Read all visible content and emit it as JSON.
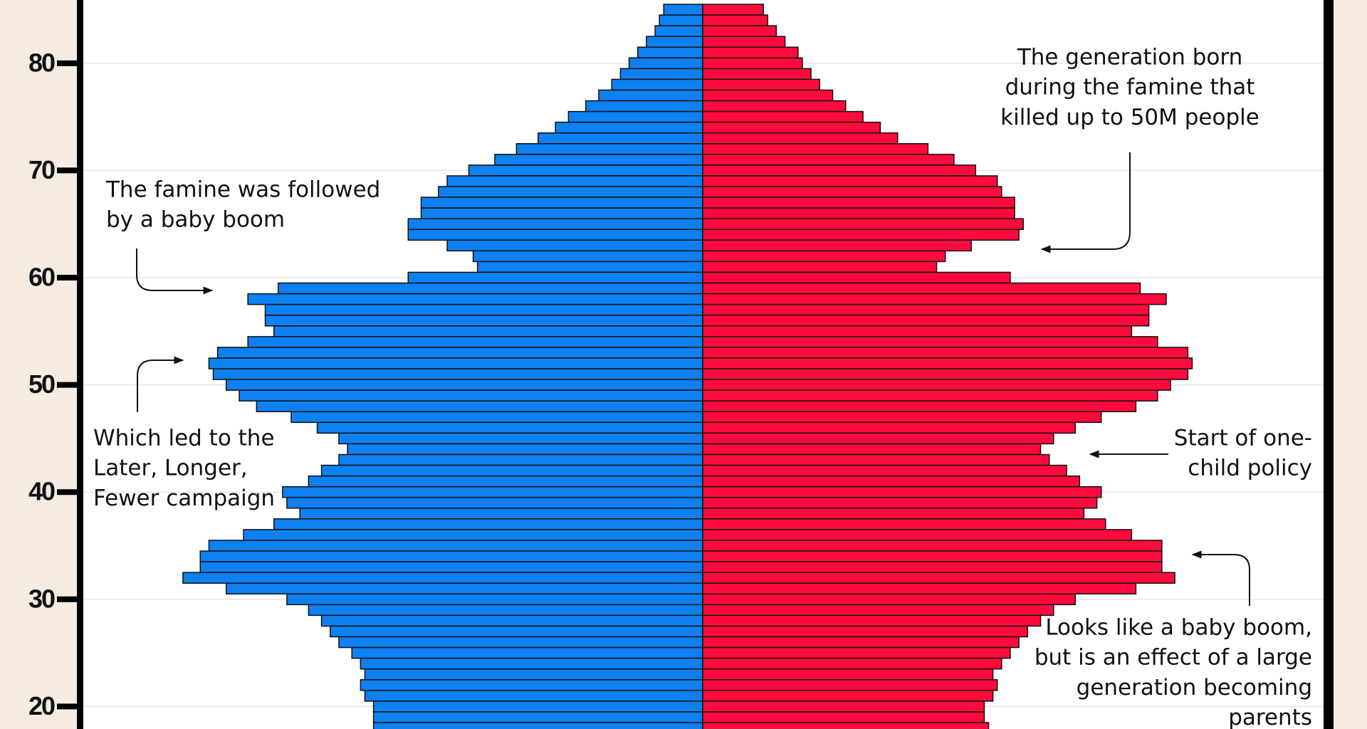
{
  "chart_data": {
    "type": "pyramid",
    "y": [
      85,
      84,
      83,
      82,
      81,
      80,
      79,
      78,
      77,
      76,
      75,
      74,
      73,
      72,
      71,
      70,
      69,
      68,
      67,
      66,
      65,
      64,
      63,
      62,
      61,
      60,
      59,
      58,
      57,
      56,
      55,
      54,
      53,
      52,
      51,
      50,
      49,
      48,
      47,
      46,
      45,
      44,
      43,
      42,
      41,
      40,
      39,
      38,
      37,
      36,
      35,
      34,
      33,
      32,
      31,
      30,
      29,
      28,
      27,
      26,
      25,
      24,
      23,
      22,
      21,
      20,
      19,
      18
    ],
    "series": [
      {
        "side": "left",
        "color": "#0d80f2",
        "values": [
          0.9,
          1.0,
          1.1,
          1.3,
          1.5,
          1.7,
          1.9,
          2.1,
          2.4,
          2.7,
          3.1,
          3.4,
          3.8,
          4.3,
          4.8,
          5.4,
          5.9,
          6.1,
          6.5,
          6.5,
          6.8,
          6.8,
          5.9,
          5.3,
          5.2,
          6.8,
          9.8,
          10.5,
          10.1,
          10.1,
          9.9,
          10.5,
          11.2,
          11.4,
          11.3,
          11.0,
          10.7,
          10.3,
          9.5,
          8.9,
          8.4,
          8.2,
          8.4,
          8.8,
          9.1,
          9.7,
          9.6,
          9.3,
          9.9,
          10.6,
          11.4,
          11.6,
          11.6,
          12.0,
          11.0,
          9.6,
          9.1,
          8.8,
          8.6,
          8.4,
          8.1,
          7.9,
          7.8,
          7.9,
          7.8,
          7.6,
          7.6,
          7.6
        ]
      },
      {
        "side": "right",
        "color": "#ff0a3c",
        "values": [
          1.4,
          1.5,
          1.7,
          1.9,
          2.2,
          2.3,
          2.5,
          2.7,
          3.0,
          3.3,
          3.7,
          4.1,
          4.5,
          5.2,
          5.8,
          6.3,
          6.8,
          6.9,
          7.2,
          7.2,
          7.4,
          7.3,
          6.2,
          5.6,
          5.4,
          7.1,
          10.1,
          10.7,
          10.3,
          10.3,
          9.9,
          10.5,
          11.2,
          11.3,
          11.2,
          10.8,
          10.5,
          10.0,
          9.2,
          8.6,
          8.1,
          7.8,
          8.0,
          8.4,
          8.7,
          9.2,
          9.1,
          8.8,
          9.3,
          9.9,
          10.6,
          10.6,
          10.6,
          10.9,
          10.0,
          8.6,
          8.1,
          7.8,
          7.5,
          7.3,
          7.1,
          6.9,
          6.7,
          6.8,
          6.7,
          6.5,
          6.5,
          6.6
        ]
      }
    ],
    "xlim": [
      0,
      14.3
    ],
    "ylim": [
      17.9,
      85.9
    ],
    "yticks": [
      20,
      30,
      40,
      50,
      60,
      70,
      80
    ],
    "grid": true,
    "annotations": [
      {
        "align": "middle",
        "lines": [
          "The generation born",
          "during the famine that",
          "killed up to 50M people"
        ]
      },
      {
        "align": "start",
        "lines": [
          "The famine was followed",
          "by a baby boom"
        ]
      },
      {
        "align": "start",
        "lines": [
          "Which led to the",
          "Later, Longer,",
          "Fewer campaign"
        ]
      },
      {
        "align": "end",
        "lines": [
          "Start of one-",
          "child policy"
        ]
      },
      {
        "align": "end",
        "lines": [
          "Looks like a baby boom,",
          "but is an effect of a large",
          "generation becoming",
          "parents"
        ]
      }
    ]
  }
}
